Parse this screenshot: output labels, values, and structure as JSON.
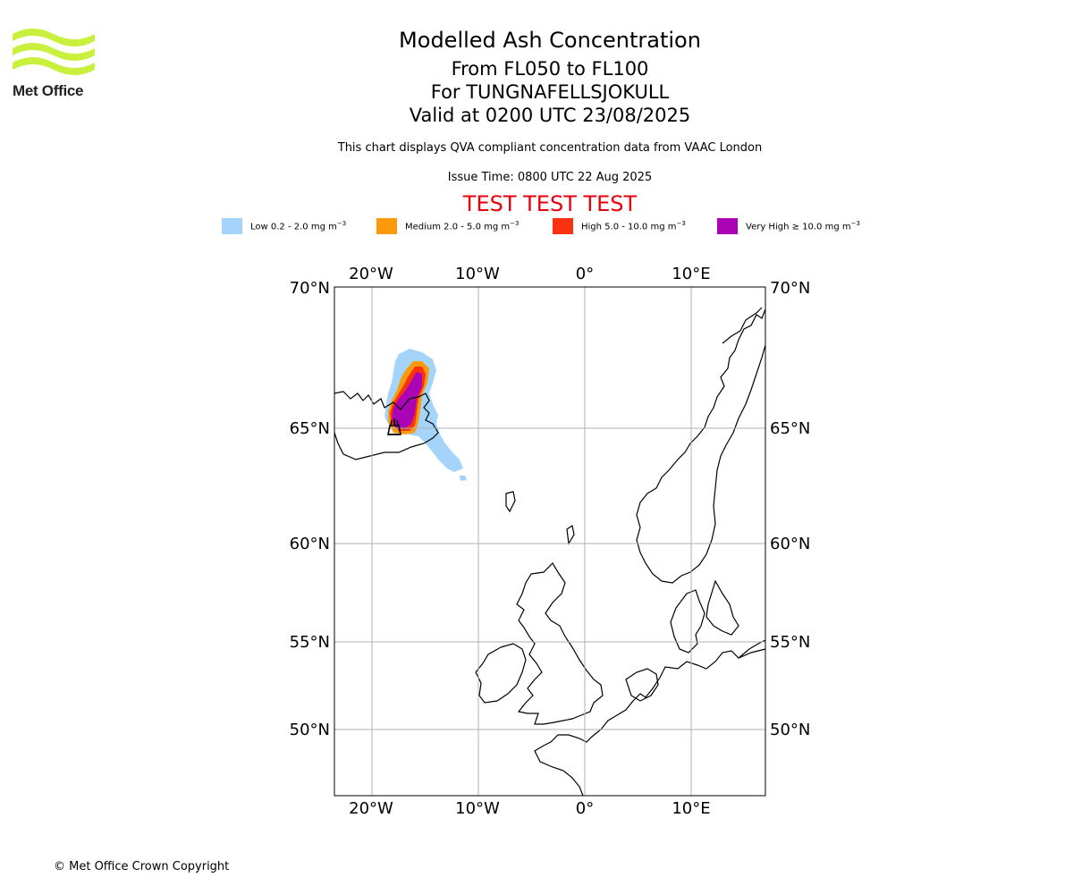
{
  "header": {
    "logo_text": "Met Office",
    "title": "Modelled Ash Concentration",
    "levels": "From FL050 to FL100",
    "volcano": "For TUNGNAFELLSJOKULL",
    "valid": "Valid at 0200 UTC 23/08/2025",
    "source_note": "This chart displays QVA compliant concentration data from VAAC London",
    "issue_time": "Issue Time: 0800 UTC 22 Aug 2025",
    "test_banner": "TEST TEST TEST"
  },
  "legend": [
    {
      "label": "Low 0.2 - 2.0 mg m",
      "unit_exp": "−3",
      "color": "#a5d4fb"
    },
    {
      "label": "Medium 2.0 - 5.0 mg m",
      "unit_exp": "−3",
      "color": "#fb9a0a"
    },
    {
      "label": "High 5.0 - 10.0 mg m",
      "unit_exp": "−3",
      "color": "#f93210"
    },
    {
      "label": "Very High ≥ 10.0 mg m",
      "unit_exp": "−3",
      "color": "#ab04b6"
    }
  ],
  "map": {
    "lon_labels": [
      "20°W",
      "10°W",
      "0°",
      "10°E"
    ],
    "lat_labels": [
      "70°N",
      "65°N",
      "60°N",
      "55°N",
      "50°N"
    ],
    "volcano_icon": "volcano-icon",
    "colors": {
      "low": "#a5d4fb",
      "medium": "#fb9a0a",
      "high": "#f93210",
      "very_high": "#ab04b6",
      "grid": "#b0b0b0",
      "coast": "#000000"
    }
  },
  "footer": {
    "copyright": "© Met Office Crown Copyright"
  }
}
